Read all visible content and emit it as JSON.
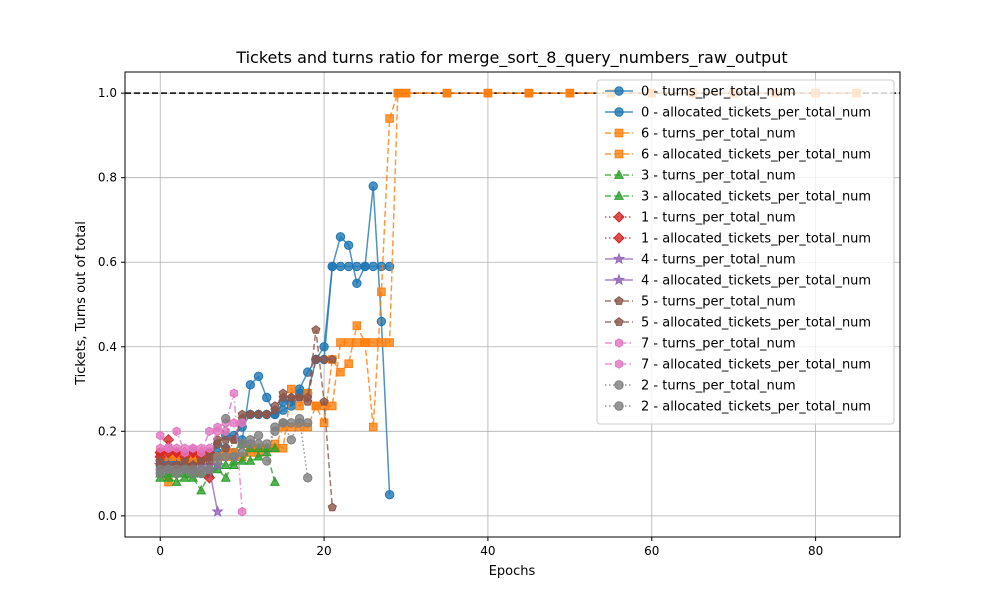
{
  "chart_data": {
    "type": "line",
    "title": "Tickets and turns ratio for merge_sort_8_query_numbers_raw_output",
    "xlabel": "Epochs",
    "ylabel": "Tickets, Turns out of total",
    "xlim": [
      -4.3,
      90.3
    ],
    "ylim": [
      -0.05,
      1.05
    ],
    "xticks": [
      0,
      20,
      40,
      60,
      80
    ],
    "yticks": [
      0.0,
      0.2,
      0.4,
      0.6,
      0.8,
      1.0
    ],
    "xtick_labels": [
      "0",
      "20",
      "40",
      "60",
      "80"
    ],
    "ytick_labels": [
      "0.0",
      "0.2",
      "0.4",
      "0.6",
      "0.8",
      "1.0"
    ],
    "grid": true,
    "legend_position": "top-right",
    "reference_line": {
      "y": 1.0,
      "style": "dashed",
      "color": "#000000"
    },
    "series": [
      {
        "name": "0 - turns_per_total_num",
        "color": "#1f77b4",
        "marker": "circle",
        "dash": "solid",
        "x": [
          0,
          1,
          2,
          3,
          4,
          5,
          6,
          7,
          8,
          9,
          10,
          11,
          12,
          13,
          14,
          15,
          16,
          17,
          18,
          19,
          20,
          21,
          22,
          23,
          24,
          25,
          26,
          27,
          28
        ],
        "y": [
          0.12,
          0.14,
          0.13,
          0.12,
          0.13,
          0.13,
          0.14,
          0.15,
          0.16,
          0.15,
          0.18,
          0.31,
          0.33,
          0.28,
          0.24,
          0.25,
          0.26,
          0.3,
          0.34,
          0.37,
          0.4,
          0.59,
          0.66,
          0.64,
          0.55,
          0.59,
          0.78,
          0.46,
          0.05
        ]
      },
      {
        "name": "0 - allocated_tickets_per_total_num",
        "color": "#1f77b4",
        "marker": "circle",
        "dash": "solid",
        "x": [
          0,
          1,
          2,
          3,
          4,
          5,
          6,
          7,
          8,
          9,
          10,
          11,
          12,
          13,
          14,
          15,
          16,
          17,
          18,
          19,
          20,
          21,
          22,
          23,
          24,
          25,
          26,
          27,
          28
        ],
        "y": [
          0.13,
          0.13,
          0.13,
          0.13,
          0.13,
          0.13,
          0.15,
          0.17,
          0.19,
          0.19,
          0.21,
          0.24,
          0.24,
          0.24,
          0.24,
          0.27,
          0.27,
          0.29,
          0.29,
          0.37,
          0.37,
          0.59,
          0.59,
          0.59,
          0.59,
          0.59,
          0.59,
          0.59,
          0.59
        ]
      },
      {
        "name": "6 - turns_per_total_num",
        "color": "#ff7f0e",
        "marker": "square",
        "dash": "dashed",
        "x": [
          0,
          1,
          2,
          3,
          4,
          5,
          6,
          7,
          8,
          9,
          10,
          11,
          12,
          13,
          14,
          15,
          16,
          17,
          18,
          19,
          20,
          21,
          22,
          23,
          24,
          25,
          26,
          27,
          28,
          29,
          30,
          35,
          40,
          45,
          50,
          55,
          60,
          65,
          70,
          75,
          80,
          85
        ],
        "y": [
          0.15,
          0.08,
          0.14,
          0.12,
          0.13,
          0.13,
          0.14,
          0.14,
          0.15,
          0.15,
          0.14,
          0.15,
          0.15,
          0.16,
          0.17,
          0.16,
          0.3,
          0.26,
          0.29,
          0.26,
          0.22,
          0.37,
          0.34,
          0.36,
          0.45,
          0.41,
          0.21,
          0.53,
          0.94,
          1.0,
          1.0,
          1.0,
          1.0,
          1.0,
          1.0,
          1.0,
          1.0,
          1.0,
          1.0,
          1.0,
          1.0,
          1.0
        ]
      },
      {
        "name": "6 - allocated_tickets_per_total_num",
        "color": "#ff7f0e",
        "marker": "square",
        "dash": "dashed",
        "x": [
          0,
          1,
          2,
          3,
          4,
          5,
          6,
          7,
          8,
          9,
          10,
          11,
          12,
          13,
          14,
          15,
          16,
          17,
          18,
          19,
          20,
          21,
          22,
          23,
          24,
          25,
          26,
          27,
          28,
          29,
          30,
          35,
          40,
          45,
          50,
          55,
          60,
          65,
          70,
          75,
          80,
          85
        ],
        "y": [
          0.14,
          0.14,
          0.14,
          0.14,
          0.14,
          0.14,
          0.14,
          0.14,
          0.14,
          0.14,
          0.14,
          0.16,
          0.16,
          0.16,
          0.16,
          0.21,
          0.21,
          0.21,
          0.21,
          0.26,
          0.26,
          0.26,
          0.41,
          0.41,
          0.41,
          0.41,
          0.41,
          0.41,
          0.41,
          1.0,
          1.0,
          1.0,
          1.0,
          1.0,
          1.0,
          1.0,
          1.0,
          1.0,
          1.0,
          1.0,
          1.0,
          1.0
        ]
      },
      {
        "name": "3 - turns_per_total_num",
        "color": "#2ca02c",
        "marker": "triangle",
        "dash": "dashed",
        "x": [
          0,
          1,
          2,
          3,
          4,
          5,
          6,
          7,
          8,
          9,
          10,
          11,
          12,
          13,
          14
        ],
        "y": [
          0.09,
          0.09,
          0.08,
          0.09,
          0.09,
          0.06,
          0.1,
          0.11,
          0.09,
          0.13,
          0.17,
          0.13,
          0.14,
          0.15,
          0.08
        ]
      },
      {
        "name": "3 - allocated_tickets_per_total_num",
        "color": "#2ca02c",
        "marker": "triangle",
        "dash": "dashed",
        "x": [
          0,
          1,
          2,
          3,
          4,
          5,
          6,
          7,
          8,
          9,
          10,
          11,
          12,
          13,
          14
        ],
        "y": [
          0.1,
          0.1,
          0.1,
          0.1,
          0.1,
          0.1,
          0.1,
          0.12,
          0.12,
          0.12,
          0.13,
          0.16,
          0.16,
          0.16,
          0.16
        ]
      },
      {
        "name": "1 - turns_per_total_num",
        "color": "#d62728",
        "marker": "diamond",
        "dash": "dotted",
        "x": [
          0,
          1,
          2,
          3,
          4,
          5,
          6
        ],
        "y": [
          0.14,
          0.18,
          0.15,
          0.14,
          0.15,
          0.14,
          0.09
        ]
      },
      {
        "name": "1 - allocated_tickets_per_total_num",
        "color": "#d62728",
        "marker": "diamond",
        "dash": "dotted",
        "x": [
          0,
          1,
          2,
          3,
          4,
          5,
          6
        ],
        "y": [
          0.15,
          0.15,
          0.15,
          0.15,
          0.15,
          0.15,
          0.15
        ]
      },
      {
        "name": "4 - turns_per_total_num",
        "color": "#9467bd",
        "marker": "star",
        "dash": "solid",
        "x": [
          0,
          1,
          2,
          3,
          4,
          5,
          6,
          7
        ],
        "y": [
          0.12,
          0.11,
          0.12,
          0.11,
          0.11,
          0.12,
          0.11,
          0.01
        ]
      },
      {
        "name": "4 - allocated_tickets_per_total_num",
        "color": "#9467bd",
        "marker": "star",
        "dash": "solid",
        "x": [
          0,
          1,
          2,
          3,
          4,
          5,
          6,
          7
        ],
        "y": [
          0.12,
          0.12,
          0.12,
          0.12,
          0.12,
          0.12,
          0.12,
          0.12
        ]
      },
      {
        "name": "5 - turns_per_total_num",
        "color": "#8c564b",
        "marker": "pentagon",
        "dash": "dashed",
        "x": [
          0,
          1,
          2,
          3,
          4,
          5,
          6,
          7,
          8,
          9,
          10,
          11,
          12,
          13,
          14,
          15,
          16,
          17,
          18,
          19,
          20,
          21
        ],
        "y": [
          0.13,
          0.11,
          0.12,
          0.13,
          0.12,
          0.13,
          0.14,
          0.17,
          0.16,
          0.18,
          0.24,
          0.24,
          0.24,
          0.24,
          0.25,
          0.29,
          0.28,
          0.28,
          0.27,
          0.44,
          0.27,
          0.02
        ]
      },
      {
        "name": "5 - allocated_tickets_per_total_num",
        "color": "#8c564b",
        "marker": "pentagon",
        "dash": "dashed",
        "x": [
          0,
          1,
          2,
          3,
          4,
          5,
          6,
          7,
          8,
          9,
          10,
          11,
          12,
          13,
          14,
          15,
          16,
          17,
          18,
          19,
          20,
          21
        ],
        "y": [
          0.12,
          0.12,
          0.12,
          0.12,
          0.12,
          0.13,
          0.13,
          0.18,
          0.18,
          0.18,
          0.23,
          0.24,
          0.24,
          0.24,
          0.26,
          0.28,
          0.28,
          0.28,
          0.28,
          0.37,
          0.37,
          0.37
        ]
      },
      {
        "name": "7 - turns_per_total_num",
        "color": "#e377c2",
        "marker": "hexagon",
        "dash": "dashdot",
        "x": [
          0,
          1,
          2,
          3,
          4,
          5,
          6,
          7,
          8,
          9,
          10
        ],
        "y": [
          0.19,
          0.16,
          0.2,
          0.15,
          0.16,
          0.15,
          0.2,
          0.21,
          0.22,
          0.29,
          0.01
        ]
      },
      {
        "name": "7 - allocated_tickets_per_total_num",
        "color": "#e377c2",
        "marker": "hexagon",
        "dash": "dashdot",
        "x": [
          0,
          1,
          2,
          3,
          4,
          5,
          6,
          7,
          8,
          9,
          10
        ],
        "y": [
          0.16,
          0.16,
          0.16,
          0.16,
          0.16,
          0.16,
          0.16,
          0.2,
          0.2,
          0.22,
          0.22
        ]
      },
      {
        "name": "2 - turns_per_total_num",
        "color": "#7f7f7f",
        "marker": "circle",
        "dash": "dotted",
        "x": [
          0,
          1,
          2,
          3,
          4,
          5,
          6,
          7,
          8,
          9,
          10,
          11,
          12,
          13,
          14,
          15,
          16,
          17,
          18
        ],
        "y": [
          0.1,
          0.11,
          0.1,
          0.11,
          0.1,
          0.1,
          0.11,
          0.13,
          0.23,
          0.14,
          0.15,
          0.18,
          0.19,
          0.13,
          0.21,
          0.22,
          0.18,
          0.23,
          0.09
        ]
      },
      {
        "name": "2 - allocated_tickets_per_total_num",
        "color": "#7f7f7f",
        "marker": "circle",
        "dash": "dotted",
        "x": [
          0,
          1,
          2,
          3,
          4,
          5,
          6,
          7,
          8,
          9,
          10,
          11,
          12,
          13,
          14,
          15,
          16,
          17,
          18
        ],
        "y": [
          0.11,
          0.11,
          0.11,
          0.11,
          0.11,
          0.11,
          0.11,
          0.14,
          0.14,
          0.14,
          0.17,
          0.17,
          0.17,
          0.17,
          0.2,
          0.22,
          0.22,
          0.22,
          0.22
        ]
      }
    ]
  }
}
